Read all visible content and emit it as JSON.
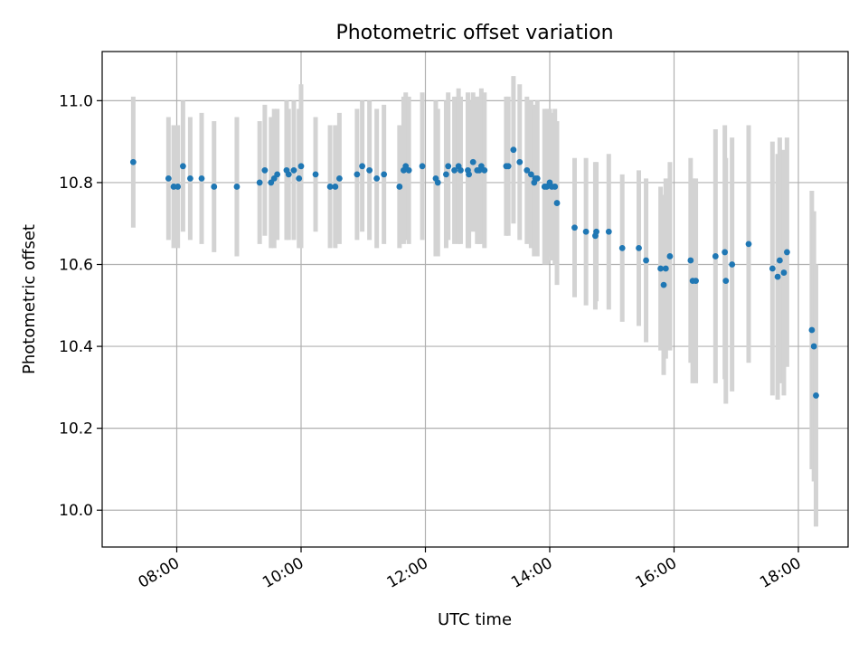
{
  "chart_data": {
    "type": "scatter",
    "title": "Photometric offset variation",
    "xlabel": "UTC time",
    "ylabel": "Photometric offset",
    "x_unit": "hours UTC",
    "xlim": [
      "06:48",
      "18:48"
    ],
    "ylim": [
      9.91,
      11.12
    ],
    "xticks": [
      "08:00",
      "10:00",
      "12:00",
      "14:00",
      "16:00",
      "18:00"
    ],
    "yticks": [
      "10.0",
      "10.2",
      "10.4",
      "10.6",
      "10.8",
      "11.0"
    ],
    "grid": true,
    "colors": {
      "marker": "#1f77b4",
      "errorbar": "#d3d3d3"
    },
    "series": [
      {
        "x": [
          "07:18",
          "07:52",
          "07:57",
          "08:01",
          "08:06",
          "08:13",
          "08:24",
          "08:36",
          "08:58",
          "09:20",
          "09:25",
          "09:31",
          "09:34",
          "09:37",
          "09:46",
          "09:48",
          "09:53",
          "09:58",
          "10:00",
          "10:14",
          "10:28",
          "10:33",
          "10:37",
          "10:54",
          "10:59",
          "11:06",
          "11:13",
          "11:20",
          "11:35",
          "11:39",
          "11:41",
          "11:44",
          "11:57",
          "12:10",
          "12:12",
          "12:20",
          "12:22",
          "12:28",
          "12:32",
          "12:34",
          "12:41",
          "12:42",
          "12:46",
          "12:50",
          "12:52",
          "12:54",
          "12:57",
          "13:18",
          "13:20",
          "13:25",
          "13:31",
          "13:38",
          "13:42",
          "13:45",
          "13:46",
          "13:48",
          "13:55",
          "13:57",
          "14:00",
          "14:02",
          "14:05",
          "14:07",
          "14:24",
          "14:35",
          "14:44",
          "14:45",
          "14:57",
          "15:10",
          "15:26",
          "15:33",
          "15:47",
          "15:50",
          "15:52",
          "15:56",
          "16:16",
          "16:18",
          "16:21",
          "16:40",
          "16:49",
          "16:50",
          "16:56",
          "17:12",
          "17:35",
          "17:40",
          "17:42",
          "17:46",
          "17:49",
          "18:13",
          "18:15",
          "18:17"
        ],
        "y": [
          10.85,
          10.81,
          10.79,
          10.79,
          10.84,
          10.81,
          10.81,
          10.79,
          10.79,
          10.8,
          10.83,
          10.8,
          10.81,
          10.82,
          10.83,
          10.82,
          10.83,
          10.81,
          10.84,
          10.82,
          10.79,
          10.79,
          10.81,
          10.82,
          10.84,
          10.83,
          10.81,
          10.82,
          10.79,
          10.83,
          10.84,
          10.83,
          10.84,
          10.81,
          10.8,
          10.82,
          10.84,
          10.83,
          10.84,
          10.83,
          10.83,
          10.82,
          10.85,
          10.83,
          10.83,
          10.84,
          10.83,
          10.84,
          10.84,
          10.88,
          10.85,
          10.83,
          10.82,
          10.8,
          10.81,
          10.81,
          10.79,
          10.79,
          10.8,
          10.79,
          10.79,
          10.75,
          10.69,
          10.68,
          10.67,
          10.68,
          10.68,
          10.64,
          10.64,
          10.61,
          10.59,
          10.55,
          10.59,
          10.62,
          10.61,
          10.56,
          10.56,
          10.62,
          10.63,
          10.56,
          10.6,
          10.65,
          10.59,
          10.57,
          10.61,
          10.58,
          10.63,
          10.44,
          10.4,
          10.28
        ],
        "err": [
          0.16,
          0.15,
          0.15,
          0.15,
          0.16,
          0.15,
          0.16,
          0.16,
          0.17,
          0.15,
          0.16,
          0.16,
          0.17,
          0.16,
          0.17,
          0.16,
          0.17,
          0.17,
          0.2,
          0.14,
          0.15,
          0.15,
          0.16,
          0.16,
          0.16,
          0.17,
          0.17,
          0.17,
          0.15,
          0.18,
          0.18,
          0.18,
          0.18,
          0.19,
          0.18,
          0.18,
          0.18,
          0.18,
          0.19,
          0.18,
          0.19,
          0.18,
          0.17,
          0.18,
          0.18,
          0.19,
          0.19,
          0.17,
          0.17,
          0.18,
          0.19,
          0.18,
          0.18,
          0.18,
          0.18,
          0.19,
          0.19,
          0.19,
          0.18,
          0.18,
          0.19,
          0.2,
          0.17,
          0.18,
          0.18,
          0.17,
          0.19,
          0.18,
          0.19,
          0.2,
          0.2,
          0.22,
          0.22,
          0.23,
          0.25,
          0.25,
          0.25,
          0.31,
          0.31,
          0.3,
          0.31,
          0.29,
          0.31,
          0.3,
          0.3,
          0.3,
          0.28,
          0.34,
          0.33,
          0.32
        ]
      }
    ]
  }
}
